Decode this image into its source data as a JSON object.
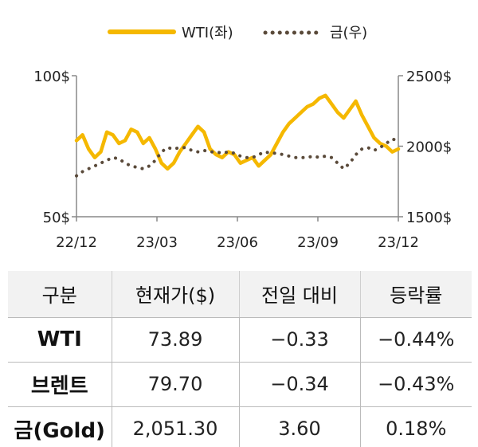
{
  "chart_data": {
    "type": "line",
    "x_ticks": [
      "22/12",
      "23/03",
      "23/06",
      "23/09",
      "23/12"
    ],
    "y_left": {
      "min": 50,
      "max": 100,
      "ticks": [
        "100$",
        "50$"
      ]
    },
    "y_right": {
      "min": 1500,
      "max": 2500,
      "ticks": [
        "2500$",
        "2000$",
        "1500$"
      ]
    },
    "legend": {
      "placement": "top-center"
    },
    "series": [
      {
        "name": "WTI(좌)",
        "axis": "left",
        "style": "solid",
        "color": "#f5b800",
        "values": [
          77,
          79,
          74,
          71,
          73,
          80,
          79,
          76,
          77,
          81,
          80,
          76,
          78,
          74,
          69,
          67,
          69,
          73,
          76,
          79,
          82,
          80,
          74,
          72,
          71,
          73,
          72,
          69,
          70,
          71,
          68,
          70,
          72,
          76,
          80,
          83,
          85,
          87,
          89,
          90,
          92,
          93,
          90,
          87,
          85,
          88,
          91,
          86,
          82,
          78,
          76,
          75,
          73,
          74
        ]
      },
      {
        "name": "금(우)",
        "axis": "right",
        "style": "dotted",
        "color": "#5a4a3a",
        "values": [
          1790,
          1820,
          1840,
          1860,
          1880,
          1900,
          1920,
          1910,
          1880,
          1860,
          1850,
          1840,
          1860,
          1900,
          1960,
          1990,
          1980,
          1990,
          1990,
          1970,
          1960,
          1970,
          1960,
          1960,
          1950,
          1960,
          1950,
          1930,
          1920,
          1920,
          1940,
          1960,
          1950,
          1950,
          1940,
          1930,
          1920,
          1920,
          1920,
          1930,
          1920,
          1930,
          1920,
          1880,
          1840,
          1880,
          1940,
          1980,
          1990,
          1970,
          1990,
          2020,
          2050,
          2040
        ]
      }
    ]
  },
  "table": {
    "headers": [
      "구분",
      "현재가($)",
      "전일 대비",
      "등락률"
    ],
    "rows": [
      {
        "name": "WTI",
        "price": "73.89",
        "change": "−0.33",
        "rate": "−0.44%"
      },
      {
        "name": "브렌트",
        "price": "79.70",
        "change": "−0.34",
        "rate": "−0.43%"
      },
      {
        "name": "금(Gold)",
        "price": "2,051.30",
        "change": "3.60",
        "rate": "0.18%"
      }
    ]
  }
}
